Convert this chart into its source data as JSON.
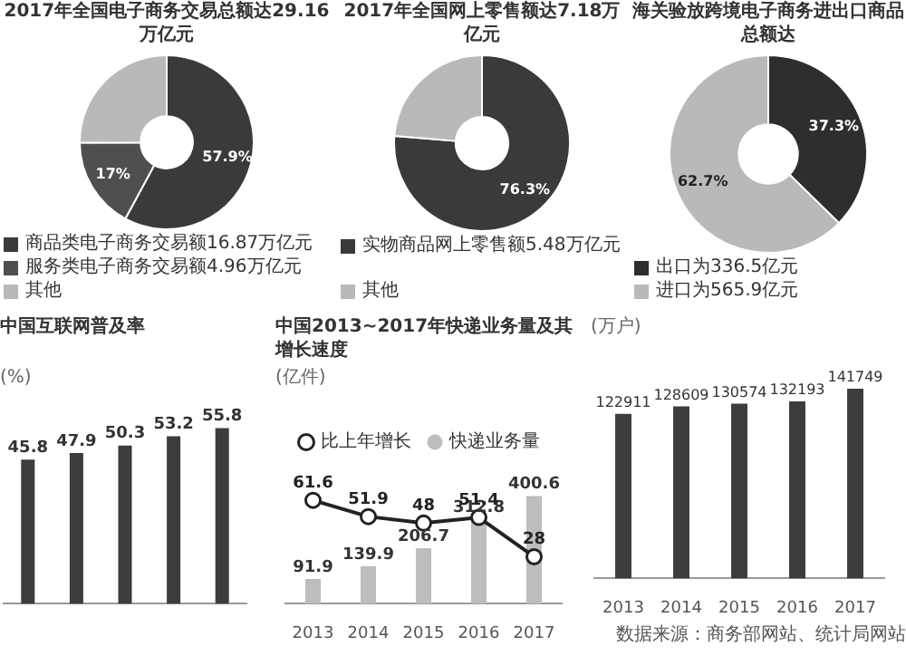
{
  "chart_data": [
    {
      "type": "donut",
      "title": "2017年全国电子商务交易总额达29.16万亿元",
      "categories": [
        "商品类电子商务交易额16.87万亿元",
        "服务类电子商务交易额4.96万亿元",
        "其他"
      ],
      "values": [
        57.9,
        17,
        25.1
      ],
      "value_labels": [
        "57.9%",
        "17%",
        null
      ],
      "colors": [
        "#3a3a3a",
        "#4f4f4f",
        "#b9b9b9"
      ],
      "legend": "bottom"
    },
    {
      "type": "donut",
      "title": "2017年全国网上零售额达7.18万亿元",
      "categories": [
        "实物商品网上零售额5.48万亿元",
        "其他"
      ],
      "values": [
        76.3,
        23.7
      ],
      "value_labels": [
        "76.3%",
        null
      ],
      "colors": [
        "#3a3a3a",
        "#b9b9b9"
      ],
      "legend": "bottom"
    },
    {
      "type": "donut",
      "title": "海关验放跨境电子商务进出口商品总额达",
      "categories": [
        "出口为336.5亿元",
        "进口为565.9亿元"
      ],
      "values": [
        37.3,
        62.7
      ],
      "value_labels": [
        "37.3%",
        "62.7%"
      ],
      "colors": [
        "#2e2e2e",
        "#b9b9b9"
      ],
      "legend": "bottom"
    },
    {
      "type": "bar",
      "title": "中国互联网普及率",
      "ylabel": "(%)",
      "categories": [
        null,
        null,
        null,
        null,
        null
      ],
      "values": [
        45.8,
        47.9,
        50.3,
        53.2,
        55.8
      ],
      "color": "#3c3c3c",
      "data_labels": true
    },
    {
      "type": "bar",
      "title": "中国2013~2017年快递业务量及其增长速度",
      "ylabel": "(亿件)",
      "categories": [
        "2013",
        "2014",
        "2015",
        "2016",
        "2017"
      ],
      "series": [
        {
          "name": "快递业务量",
          "type": "bar",
          "color": "#bdbdbd",
          "values": [
            91.9,
            139.9,
            206.7,
            312.8,
            400.6
          ]
        },
        {
          "name": "比上年增长",
          "type": "line",
          "axis": "y2",
          "color": "#222222",
          "values": [
            61.6,
            51.9,
            48.0,
            51.4,
            28.0
          ]
        }
      ],
      "legend": "top",
      "marker": "circle",
      "data_labels": true
    },
    {
      "type": "bar",
      "ylabel": "(万户)",
      "categories": [
        "2013",
        "2014",
        "2015",
        "2016",
        "2017"
      ],
      "values": [
        122911,
        128609,
        130574,
        132193,
        141749
      ],
      "color": "#3c3c3c",
      "data_labels": true,
      "annotations": [
        "数据来源：商务部网站、统计局网站"
      ]
    }
  ]
}
